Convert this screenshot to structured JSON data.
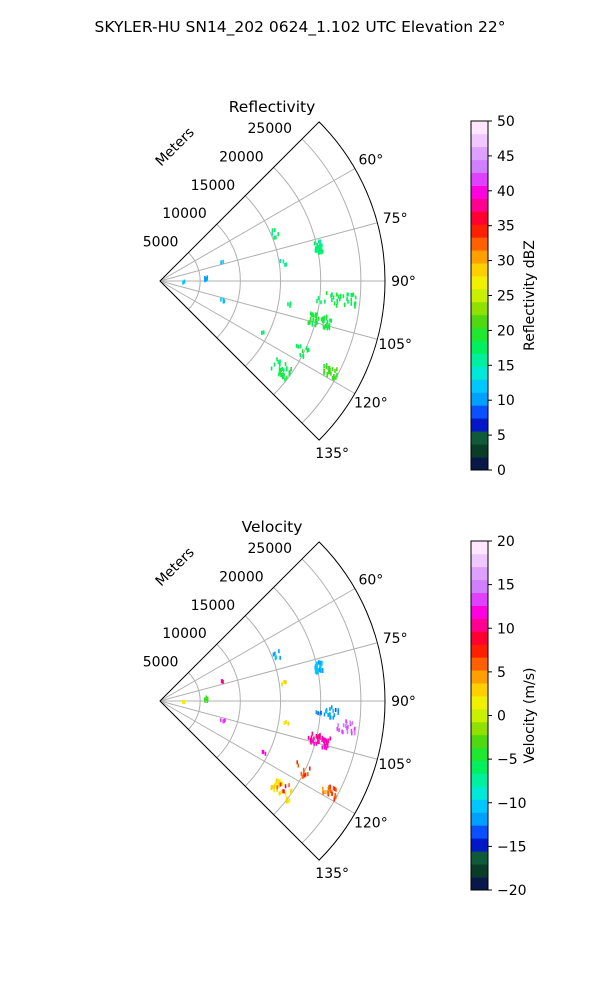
{
  "figure_title": "SKYLER-HU  SN14_202  0624_1.102 UTC Elevation 22°",
  "colors": {
    "grid": "#b0b0b0",
    "frame": "#000000"
  },
  "chart_data": [
    {
      "type": "polar-sector",
      "title": "Reflectivity",
      "range_axis_label": "Meters",
      "range_ticks": [
        5000,
        10000,
        15000,
        20000,
        25000
      ],
      "range_tick_labels": [
        "5000",
        "10000",
        "15000",
        "20000",
        "25000"
      ],
      "range_max": 28000,
      "theta_range_deg": [
        45,
        135
      ],
      "theta_ticks_deg": [
        60,
        75,
        90,
        105,
        120,
        135
      ],
      "theta_tick_labels": [
        "60°",
        "75°",
        "90°",
        "105°",
        "120°",
        "135°"
      ],
      "colorbar": {
        "label": "Reflectivity dBZ",
        "min": 0,
        "max": 50,
        "ticks": [
          0,
          5,
          10,
          15,
          20,
          25,
          30,
          35,
          40,
          45,
          50
        ],
        "tick_labels": [
          "0",
          "5",
          "10",
          "15",
          "20",
          "25",
          "30",
          "35",
          "40",
          "45",
          "50"
        ],
        "stops": [
          "#081848",
          "#0a3c2a",
          "#0f5a3a",
          "#0018c8",
          "#0a50ff",
          "#00a0ff",
          "#00c8ff",
          "#00e8d8",
          "#00f0a0",
          "#00f060",
          "#20e830",
          "#50d810",
          "#90e000",
          "#c8f000",
          "#f0f000",
          "#ffd000",
          "#ffa000",
          "#ff6000",
          "#ff2000",
          "#ff0030",
          "#ff0090",
          "#ff00e0",
          "#e040ff",
          "#d080ff",
          "#e0a0ff",
          "#f0c8ff",
          "#ffe8ff"
        ]
      },
      "clusters": [
        {
          "r": 15600,
          "theta": 68,
          "v": 17,
          "n": 6,
          "spread": [
            500,
            2.5
          ]
        },
        {
          "r": 20200,
          "theta": 78,
          "v": 17,
          "n": 30,
          "spread": [
            500,
            2.0
          ]
        },
        {
          "r": 15500,
          "theta": 82,
          "v": 16,
          "n": 4,
          "spread": [
            400,
            1.5
          ]
        },
        {
          "r": 8100,
          "theta": 73,
          "v": 12,
          "n": 3,
          "spread": [
            200,
            1.0
          ]
        },
        {
          "r": 5800,
          "theta": 88,
          "v": 11,
          "n": 8,
          "spread": [
            250,
            2.5
          ]
        },
        {
          "r": 3000,
          "theta": 92,
          "v": 12,
          "n": 3,
          "spread": [
            200,
            2.0
          ]
        },
        {
          "r": 22000,
          "theta": 96,
          "v": 18,
          "n": 35,
          "spread": [
            2500,
            2.0
          ]
        },
        {
          "r": 20500,
          "theta": 104,
          "v": 19,
          "n": 45,
          "spread": [
            1500,
            2.0
          ]
        },
        {
          "r": 16000,
          "theta": 100,
          "v": 18,
          "n": 3,
          "spread": [
            600,
            1.0
          ]
        },
        {
          "r": 8200,
          "theta": 107,
          "v": 11,
          "n": 5,
          "spread": [
            300,
            1.5
          ]
        },
        {
          "r": 19500,
          "theta": 116,
          "v": 18,
          "n": 10,
          "spread": [
            1200,
            2.0
          ]
        },
        {
          "r": 24000,
          "theta": 118,
          "v": 20,
          "n": 25,
          "spread": [
            1000,
            1.5
          ]
        },
        {
          "r": 19000,
          "theta": 126,
          "v": 18,
          "n": 30,
          "spread": [
            1500,
            2.5
          ]
        },
        {
          "r": 14500,
          "theta": 116,
          "v": 17,
          "n": 3,
          "spread": [
            500,
            1.0
          ]
        }
      ]
    },
    {
      "type": "polar-sector",
      "title": "Velocity",
      "range_axis_label": "Meters",
      "range_ticks": [
        5000,
        10000,
        15000,
        20000,
        25000
      ],
      "range_tick_labels": [
        "5000",
        "10000",
        "15000",
        "20000",
        "25000"
      ],
      "range_max": 28000,
      "theta_range_deg": [
        45,
        135
      ],
      "theta_ticks_deg": [
        60,
        75,
        90,
        105,
        120,
        135
      ],
      "theta_tick_labels": [
        "60°",
        "75°",
        "90°",
        "105°",
        "120°",
        "135°"
      ],
      "colorbar": {
        "label": "Velocity (m/s)",
        "min": -20,
        "max": 20,
        "ticks": [
          -20,
          -15,
          -10,
          -5,
          0,
          5,
          10,
          15,
          20
        ],
        "tick_labels": [
          "−20",
          "−15",
          "−10",
          "−5",
          "0",
          "5",
          "10",
          "15",
          "20"
        ],
        "stops": [
          "#081848",
          "#0a3c2a",
          "#0f5a3a",
          "#0018c8",
          "#0a50ff",
          "#00a0ff",
          "#00c8ff",
          "#00e8d8",
          "#00f0a0",
          "#00f060",
          "#20e830",
          "#50d810",
          "#90e000",
          "#c8f000",
          "#f0f000",
          "#ffd000",
          "#ffa000",
          "#ff6000",
          "#ff2000",
          "#ff0030",
          "#ff0090",
          "#ff00e0",
          "#e040ff",
          "#d080ff",
          "#e0a0ff",
          "#f0c8ff",
          "#ffe8ff"
        ]
      },
      "clusters": [
        {
          "r": 15600,
          "theta": 68,
          "v": -11,
          "n": 6,
          "spread": [
            500,
            2.5
          ]
        },
        {
          "r": 20200,
          "theta": 78,
          "v": -11,
          "n": 30,
          "spread": [
            500,
            2.0
          ]
        },
        {
          "r": 15500,
          "theta": 82,
          "v": 2,
          "n": 4,
          "spread": [
            400,
            1.5
          ]
        },
        {
          "r": 8100,
          "theta": 73,
          "v": 10,
          "n": 3,
          "spread": [
            200,
            1.0
          ]
        },
        {
          "r": 5800,
          "theta": 88,
          "v": -4,
          "n": 8,
          "spread": [
            250,
            2.5
          ]
        },
        {
          "r": 3000,
          "theta": 92,
          "v": 2,
          "n": 3,
          "spread": [
            200,
            2.0
          ]
        },
        {
          "r": 21000,
          "theta": 94,
          "v": -12,
          "n": 20,
          "spread": [
            1500,
            2.0
          ]
        },
        {
          "r": 23500,
          "theta": 98,
          "v": 14,
          "n": 20,
          "spread": [
            1200,
            2.0
          ]
        },
        {
          "r": 20500,
          "theta": 104,
          "v": 11,
          "n": 45,
          "spread": [
            1500,
            2.0
          ]
        },
        {
          "r": 16000,
          "theta": 100,
          "v": 2,
          "n": 3,
          "spread": [
            600,
            1.0
          ]
        },
        {
          "r": 8200,
          "theta": 107,
          "v": 13,
          "n": 5,
          "spread": [
            300,
            1.5
          ]
        },
        {
          "r": 19500,
          "theta": 116,
          "v": 6,
          "n": 10,
          "spread": [
            1200,
            2.0
          ]
        },
        {
          "r": 24000,
          "theta": 118,
          "v": 6,
          "n": 25,
          "spread": [
            1000,
            1.5
          ]
        },
        {
          "r": 19000,
          "theta": 126,
          "v": 2,
          "n": 30,
          "spread": [
            1500,
            2.5
          ]
        },
        {
          "r": 18500,
          "theta": 125,
          "v": 7,
          "n": 6,
          "spread": [
            800,
            2.0
          ]
        },
        {
          "r": 14500,
          "theta": 116,
          "v": 13,
          "n": 3,
          "spread": [
            500,
            1.0
          ]
        }
      ]
    }
  ]
}
